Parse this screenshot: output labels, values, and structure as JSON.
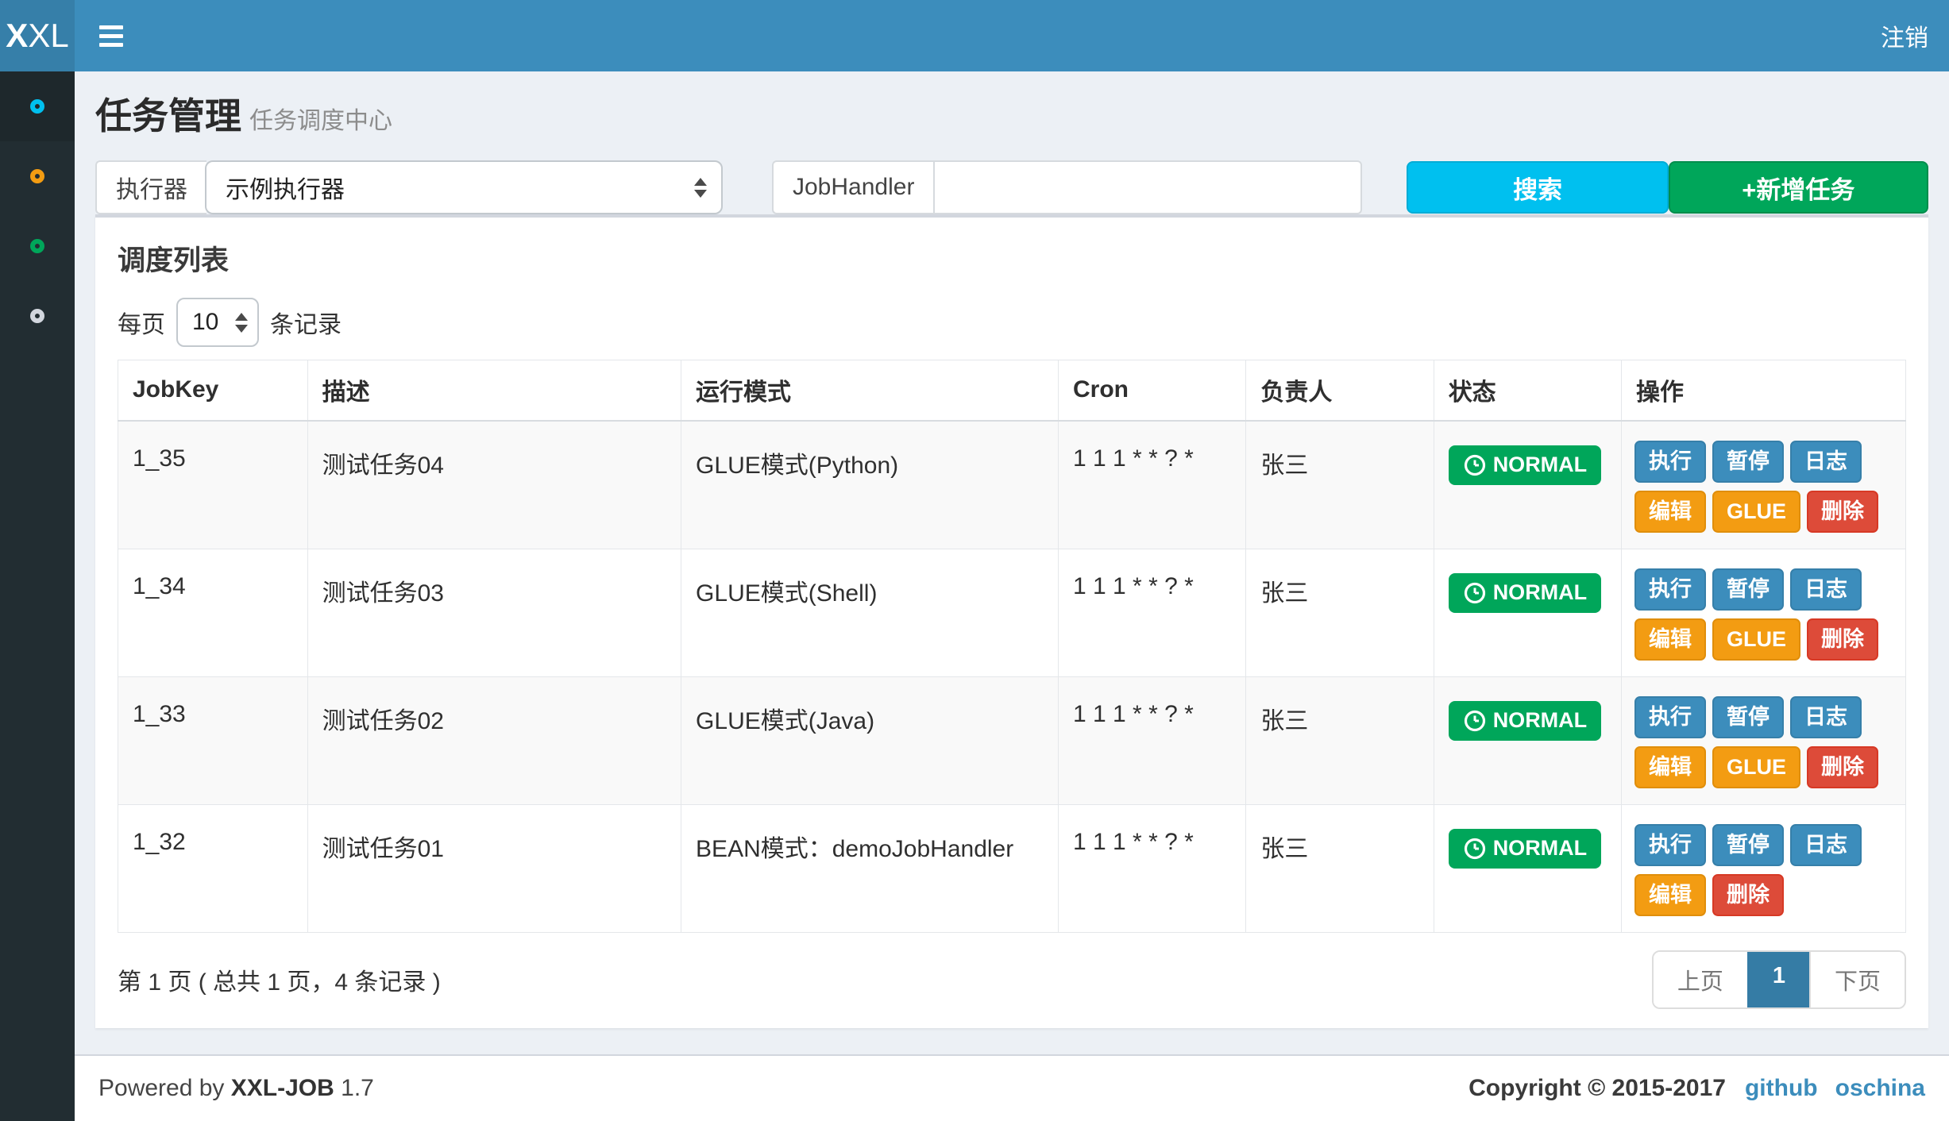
{
  "colors": {
    "navbar": "#3c8dbc",
    "logo_bg": "#367fa9",
    "sidebar_bg": "#222d32",
    "page_bg": "#ecf0f5",
    "info": "#00c0ef",
    "success": "#00a65a",
    "warning": "#f39c12",
    "danger": "#dd4b39",
    "primary": "#3c8dbc",
    "pagination_active": "#357ca5"
  },
  "navbar": {
    "logo_first": "X",
    "logo_rest": "XL",
    "logout_label": "注销"
  },
  "sidebar": {
    "items": [
      {
        "name": "job-manage",
        "icon": "circle-icon",
        "color": "#00c0ef",
        "active": true
      },
      {
        "name": "log-manage",
        "icon": "circle-icon",
        "color": "#f39c12",
        "active": false
      },
      {
        "name": "executor-manage",
        "icon": "circle-icon",
        "color": "#00a65a",
        "active": false
      },
      {
        "name": "help",
        "icon": "circle-icon",
        "color": "#d2d6de",
        "active": false
      }
    ]
  },
  "header": {
    "title": "任务管理",
    "subtitle": "任务调度中心"
  },
  "filters": {
    "executor_label": "执行器",
    "executor_value": "示例执行器",
    "jobhandler_label": "JobHandler",
    "jobhandler_value": "",
    "search_label": "搜索",
    "add_label": "+新增任务"
  },
  "panel": {
    "title": "调度列表",
    "length_prefix": "每页",
    "length_value": "10",
    "length_suffix": "条记录",
    "table": {
      "columns": [
        "JobKey",
        "描述",
        "运行模式",
        "Cron",
        "负责人",
        "状态",
        "操作"
      ],
      "rows": [
        {
          "job_key": "1_35",
          "desc": "测试任务04",
          "mode": "GLUE模式(Python)",
          "cron": "1 1 1 * * ? *",
          "owner": "张三",
          "status": "NORMAL",
          "ops": [
            {
              "name": "run",
              "label": "执行",
              "type": "primary"
            },
            {
              "name": "pause",
              "label": "暂停",
              "type": "primary"
            },
            {
              "name": "log",
              "label": "日志",
              "type": "primary"
            },
            {
              "name": "edit",
              "label": "编辑",
              "type": "warning"
            },
            {
              "name": "glue",
              "label": "GLUE",
              "type": "warning"
            },
            {
              "name": "delete",
              "label": "删除",
              "type": "danger"
            }
          ]
        },
        {
          "job_key": "1_34",
          "desc": "测试任务03",
          "mode": "GLUE模式(Shell)",
          "cron": "1 1 1 * * ? *",
          "owner": "张三",
          "status": "NORMAL",
          "ops": [
            {
              "name": "run",
              "label": "执行",
              "type": "primary"
            },
            {
              "name": "pause",
              "label": "暂停",
              "type": "primary"
            },
            {
              "name": "log",
              "label": "日志",
              "type": "primary"
            },
            {
              "name": "edit",
              "label": "编辑",
              "type": "warning"
            },
            {
              "name": "glue",
              "label": "GLUE",
              "type": "warning"
            },
            {
              "name": "delete",
              "label": "删除",
              "type": "danger"
            }
          ]
        },
        {
          "job_key": "1_33",
          "desc": "测试任务02",
          "mode": "GLUE模式(Java)",
          "cron": "1 1 1 * * ? *",
          "owner": "张三",
          "status": "NORMAL",
          "ops": [
            {
              "name": "run",
              "label": "执行",
              "type": "primary"
            },
            {
              "name": "pause",
              "label": "暂停",
              "type": "primary"
            },
            {
              "name": "log",
              "label": "日志",
              "type": "primary"
            },
            {
              "name": "edit",
              "label": "编辑",
              "type": "warning"
            },
            {
              "name": "glue",
              "label": "GLUE",
              "type": "warning"
            },
            {
              "name": "delete",
              "label": "删除",
              "type": "danger"
            }
          ]
        },
        {
          "job_key": "1_32",
          "desc": "测试任务01",
          "mode": "BEAN模式：demoJobHandler",
          "cron": "1 1 1 * * ? *",
          "owner": "张三",
          "status": "NORMAL",
          "ops": [
            {
              "name": "run",
              "label": "执行",
              "type": "primary"
            },
            {
              "name": "pause",
              "label": "暂停",
              "type": "primary"
            },
            {
              "name": "log",
              "label": "日志",
              "type": "primary"
            },
            {
              "name": "edit",
              "label": "编辑",
              "type": "warning"
            },
            {
              "name": "delete",
              "label": "删除",
              "type": "danger"
            }
          ]
        }
      ]
    },
    "pagination": {
      "info": "第 1 页 ( 总共 1 页，4 条记录 )",
      "prev_label": "上页",
      "page_label": "1",
      "next_label": "下页"
    }
  },
  "footer": {
    "powered_prefix": "Powered by",
    "brand": "XXL-JOB",
    "version": "1.7",
    "copyright": "Copyright © 2015-2017",
    "links": [
      {
        "label": "github"
      },
      {
        "label": "oschina"
      }
    ]
  }
}
